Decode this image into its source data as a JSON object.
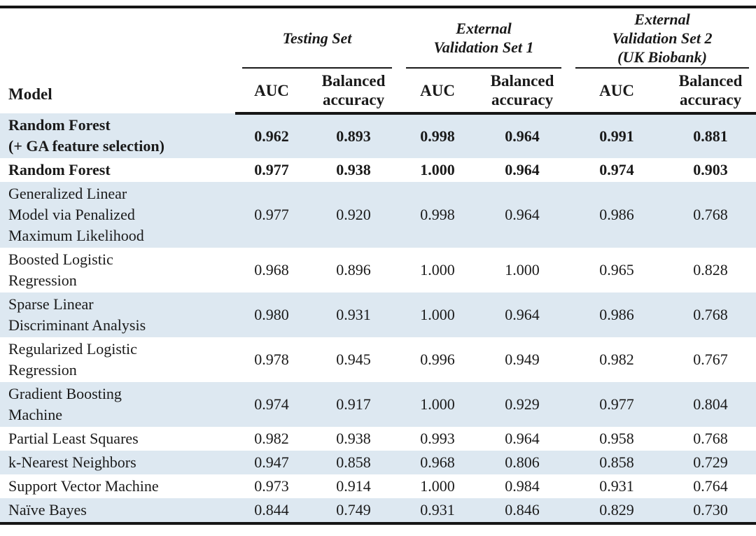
{
  "colors": {
    "stripe": "#dde8f1",
    "text": "#1a1a1a",
    "border": "#161616"
  },
  "table": {
    "model_header": "Model",
    "groups": [
      {
        "label": "Testing Set"
      },
      {
        "label": "External\nValidation Set 1"
      },
      {
        "label": "External\nValidation Set 2\n(UK Biobank)"
      }
    ],
    "subheaders": {
      "auc": "AUC",
      "balanced": "Balanced\naccuracy"
    },
    "rows": [
      {
        "model": "Random Forest\n(+ GA feature selection)",
        "bold": true,
        "shaded": true,
        "values": [
          "0.962",
          "0.893",
          "0.998",
          "0.964",
          "0.991",
          "0.881"
        ]
      },
      {
        "model": "Random Forest",
        "bold": true,
        "shaded": false,
        "values": [
          "0.977",
          "0.938",
          "1.000",
          "0.964",
          "0.974",
          "0.903"
        ]
      },
      {
        "model": "Generalized Linear\nModel via Penalized\nMaximum Likelihood",
        "bold": false,
        "shaded": true,
        "values": [
          "0.977",
          "0.920",
          "0.998",
          "0.964",
          "0.986",
          "0.768"
        ]
      },
      {
        "model": "Boosted Logistic\nRegression",
        "bold": false,
        "shaded": false,
        "values": [
          "0.968",
          "0.896",
          "1.000",
          "1.000",
          "0.965",
          "0.828"
        ]
      },
      {
        "model": "Sparse Linear\nDiscriminant Analysis",
        "bold": false,
        "shaded": true,
        "values": [
          "0.980",
          "0.931",
          "1.000",
          "0.964",
          "0.986",
          "0.768"
        ]
      },
      {
        "model": "Regularized Logistic\nRegression",
        "bold": false,
        "shaded": false,
        "values": [
          "0.978",
          "0.945",
          "0.996",
          "0.949",
          "0.982",
          "0.767"
        ]
      },
      {
        "model": "Gradient Boosting\nMachine",
        "bold": false,
        "shaded": true,
        "values": [
          "0.974",
          "0.917",
          "1.000",
          "0.929",
          "0.977",
          "0.804"
        ]
      },
      {
        "model": "Partial Least Squares",
        "bold": false,
        "shaded": false,
        "values": [
          "0.982",
          "0.938",
          "0.993",
          "0.964",
          "0.958",
          "0.768"
        ]
      },
      {
        "model": "k-Nearest Neighbors",
        "bold": false,
        "shaded": true,
        "values": [
          "0.947",
          "0.858",
          "0.968",
          "0.806",
          "0.858",
          "0.729"
        ]
      },
      {
        "model": "Support Vector Machine",
        "bold": false,
        "shaded": false,
        "values": [
          "0.973",
          "0.914",
          "1.000",
          "0.984",
          "0.931",
          "0.764"
        ]
      },
      {
        "model": "Naïve Bayes",
        "bold": false,
        "shaded": true,
        "values": [
          "0.844",
          "0.749",
          "0.931",
          "0.846",
          "0.829",
          "0.730"
        ]
      }
    ]
  }
}
